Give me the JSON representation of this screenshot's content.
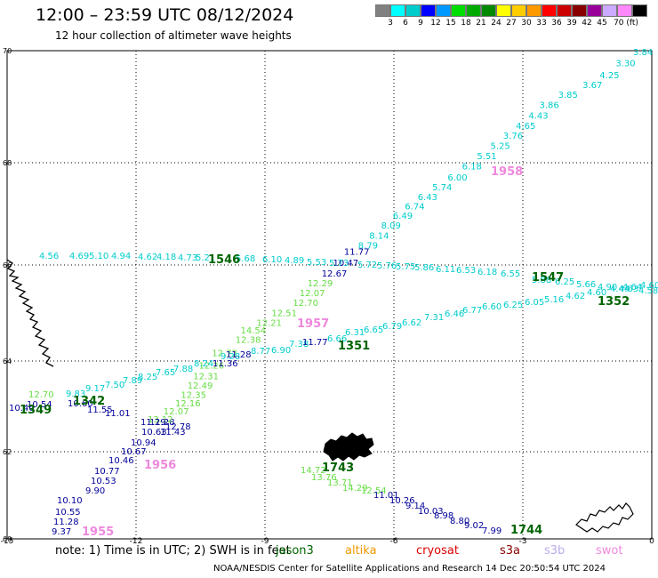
{
  "header": {
    "title": "12:00 – 23:59 UTC 08/12/2024",
    "subtitle": "12 hour collection of altimeter wave heights"
  },
  "legend": {
    "colors": [
      "#808080",
      "#00ffff",
      "#00cccc",
      "#0000ff",
      "#0099ff",
      "#00dd00",
      "#00aa00",
      "#008800",
      "#ffff00",
      "#ffcc00",
      "#ff9900",
      "#ff0000",
      "#cc0000",
      "#880000",
      "#990099",
      "#ccaaff",
      "#ff88ff",
      "#000000"
    ],
    "labels": [
      "3",
      "6",
      "9",
      "12",
      "15",
      "18",
      "21",
      "24",
      "27",
      "30",
      "33",
      "36",
      "39",
      "42",
      "45",
      "70 (ft)"
    ]
  },
  "map": {
    "lat_ticks": [
      "70",
      "68",
      "66",
      "64",
      "62",
      "60"
    ],
    "lon_ticks": [
      "-15",
      "-12",
      "-9",
      "-6",
      "-3",
      "0"
    ],
    "colors": {
      "jason3": "#006400",
      "cyan": "#00cccc",
      "lightgreen": "#66dd44",
      "navy": "#000099",
      "pink": "#ee88dd"
    }
  },
  "tracks": {
    "t1955": {
      "time": "1955",
      "values": [
        "9.37",
        "11.28",
        "10.55",
        "10.10",
        "9.90",
        "10.53",
        "10.77",
        "10.46",
        "10.67",
        "10.94",
        "10.63",
        "11.28",
        "11.43",
        "12.78"
      ]
    },
    "t1956": {
      "time": "1956",
      "values": [
        "13.12",
        "12.07",
        "12.16",
        "12.35",
        "12.49",
        "12.31",
        "12.26",
        "12.72",
        "12.38",
        "14.54",
        "12.21",
        "12.51",
        "12.70",
        "12.07",
        "12.29",
        "12.67",
        "10.47",
        "11.77",
        "8.79",
        "8.14",
        "8.09",
        "6.49",
        "6.74",
        "6.43",
        "5.74",
        "6.00",
        "6.18",
        "5.51",
        "5.25",
        "3.76",
        "4.65",
        "4.43",
        "3.86",
        "3.85",
        "3.67",
        "4.25",
        "3.30",
        "3.84"
      ]
    },
    "t1957": {
      "time": "1957"
    },
    "t1958": {
      "time": "1958"
    },
    "tCyanWest": {
      "values": [
        "12.70",
        "10.40",
        "10.54",
        "9.83",
        "9.17",
        "7.50",
        "7.89",
        "8.25",
        "7.65",
        "7.88",
        "8.24",
        "9.28",
        "8.77",
        "6.90",
        "7.38"
      ]
    },
    "tNavyMid": {
      "values": [
        "10.60",
        "11.55",
        "11.01",
        "11.29",
        "11.36",
        "11.28",
        "11.77"
      ]
    },
    "t1351": {
      "time": "1351",
      "values": [
        "6.66",
        "6.31",
        "6.65",
        "6.79",
        "6.62",
        "7.31",
        "6.46",
        "6.77",
        "6.60",
        "6.25",
        "6.05",
        "5.16",
        "4.62",
        "4.60",
        "4.44",
        "4.64",
        "4.60"
      ]
    },
    "t1352": {
      "time": "1352"
    },
    "t1349": {
      "time": "1349"
    },
    "t1342": {
      "time": "1342"
    },
    "t1546": {
      "time": "1546",
      "values": [
        "4.56",
        "4.69",
        "5.10",
        "4.94",
        "4.62",
        "4.18",
        "4.73",
        "5.21",
        "5.68",
        "6.10",
        "4.89",
        "5.53",
        "5.73",
        "5.72",
        "5.76",
        "5.75",
        "5.86",
        "6.11",
        "6.53",
        "6.18",
        "6.55"
      ]
    },
    "t1547": {
      "time": "1547",
      "values": [
        "5.88",
        "6.25",
        "5.66",
        "4.90",
        "4.63",
        "4.58"
      ]
    },
    "t1743": {
      "time": "1743",
      "values": [
        "14.72",
        "13.76",
        "13.71",
        "14.29",
        "12.54"
      ]
    },
    "t1744": {
      "time": "1744",
      "values": [
        "11.01",
        "10.26",
        "9.14",
        "10.03",
        "8.98",
        "8.80",
        "9.02",
        "7.99"
      ]
    }
  },
  "footer": {
    "note": "note:  1) Time is in UTC;  2) SWH is in feet",
    "satellites": [
      {
        "name": "jason3",
        "color": "#006400"
      },
      {
        "name": "altika",
        "color": "#ee9900"
      },
      {
        "name": "cryosat",
        "color": "#dd0000"
      },
      {
        "name": "s3a",
        "color": "#880000"
      },
      {
        "name": "s3b",
        "color": "#bbaaee"
      },
      {
        "name": "swot",
        "color": "#ee88dd"
      }
    ],
    "credit": "NOAA/NESDIS Center for Satellite Applications and Research    14 Dec 20:50:54 UTC 2024"
  }
}
